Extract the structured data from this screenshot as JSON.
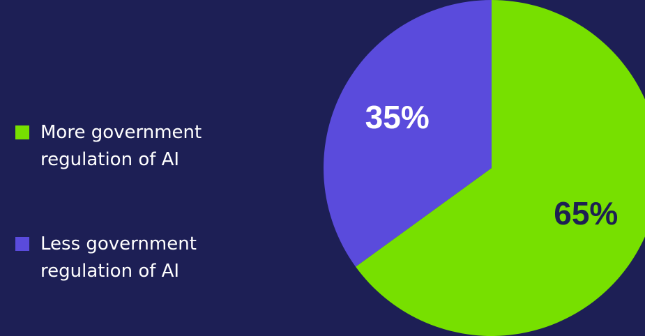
{
  "chart_data": {
    "type": "pie",
    "categories": [
      "More government regulation of AI",
      "Less government regulation of AI"
    ],
    "values": [
      65,
      35
    ],
    "value_labels": [
      "65%",
      "35%"
    ],
    "colors": [
      "#77e000",
      "#5a4bdc"
    ],
    "label_colors": [
      "#1d2052",
      "#ffffff"
    ],
    "start_angle": 0,
    "direction": "clockwise",
    "legend": "left"
  }
}
